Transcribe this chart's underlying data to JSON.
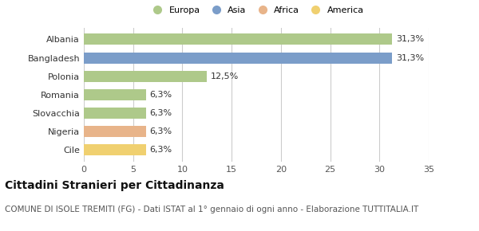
{
  "categories": [
    "Albania",
    "Bangladesh",
    "Polonia",
    "Romania",
    "Slovacchia",
    "Nigeria",
    "Cile"
  ],
  "values": [
    31.3,
    31.3,
    12.5,
    6.3,
    6.3,
    6.3,
    6.3
  ],
  "labels": [
    "31,3%",
    "31,3%",
    "12,5%",
    "6,3%",
    "6,3%",
    "6,3%",
    "6,3%"
  ],
  "colors": [
    "#aec98a",
    "#7b9dc9",
    "#aec98a",
    "#aec98a",
    "#aec98a",
    "#e8b48a",
    "#f0d070"
  ],
  "legend_items": [
    {
      "label": "Europa",
      "color": "#aec98a"
    },
    {
      "label": "Asia",
      "color": "#7b9dc9"
    },
    {
      "label": "Africa",
      "color": "#e8b48a"
    },
    {
      "label": "America",
      "color": "#f0d070"
    }
  ],
  "xlim": [
    0,
    35
  ],
  "xticks": [
    0,
    5,
    10,
    15,
    20,
    25,
    30,
    35
  ],
  "title": "Cittadini Stranieri per Cittadinanza",
  "subtitle": "COMUNE DI ISOLE TREMITI (FG) - Dati ISTAT al 1° gennaio di ogni anno - Elaborazione TUTTITALIA.IT",
  "background_color": "#ffffff",
  "bar_edge_color": "none",
  "grid_color": "#cccccc",
  "title_fontsize": 10,
  "subtitle_fontsize": 7.5,
  "label_fontsize": 8,
  "tick_fontsize": 8
}
